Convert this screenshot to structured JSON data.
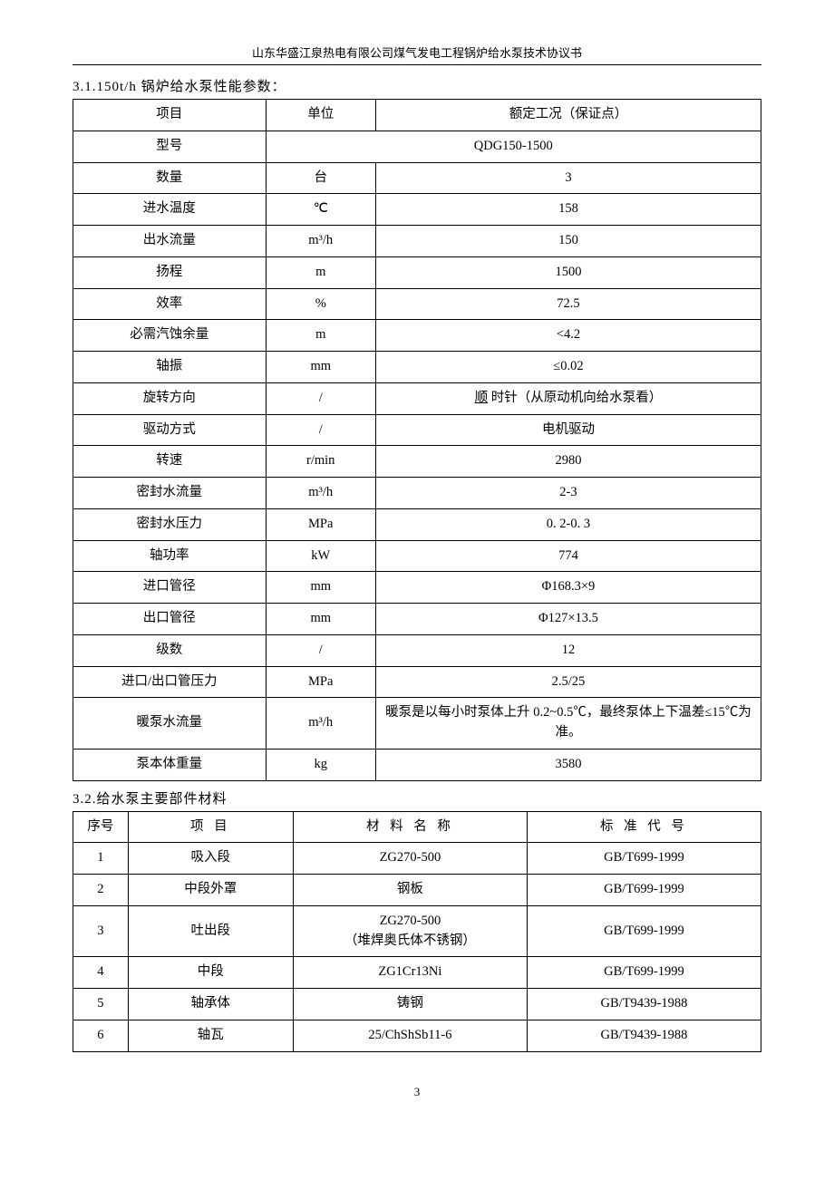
{
  "header": {
    "title": "山东华盛江泉热电有限公司煤气发电工程锅炉给水泵技术协议书"
  },
  "section31": {
    "title": "3.1.150t/h 锅炉给水泵性能参数：",
    "head": {
      "c1": "项目",
      "c2": "单位",
      "c3": "额定工况（保证点）"
    },
    "rows": [
      {
        "c1": "型号",
        "c2": "",
        "c3": "QDG150-1500",
        "merge23": true
      },
      {
        "c1": "数量",
        "c2": "台",
        "c3": "3"
      },
      {
        "c1": "进水温度",
        "c2": "℃",
        "c3": "158"
      },
      {
        "c1": "出水流量",
        "c2": "m³/h",
        "c3": "150"
      },
      {
        "c1": "扬程",
        "c2": "m",
        "c3": "1500"
      },
      {
        "c1": "效率",
        "c2": "%",
        "c3": "72.5"
      },
      {
        "c1": "必需汽蚀余量",
        "c2": "m",
        "c3": "<4.2"
      },
      {
        "c1": "轴振",
        "c2": "mm",
        "c3": "≤0.02"
      },
      {
        "c1": "旋转方向",
        "c2": "/",
        "c3_prefix": " ",
        "c3_u": "顺",
        "c3_suffix": " 时针（从原动机向给水泵看）",
        "underline": true
      },
      {
        "c1": "驱动方式",
        "c2": "/",
        "c3": "电机驱动"
      },
      {
        "c1": "转速",
        "c2": "r/min",
        "c3": "2980"
      },
      {
        "c1": "密封水流量",
        "c2": "m³/h",
        "c3": "2-3"
      },
      {
        "c1": "密封水压力",
        "c2": "MPa",
        "c3": "0. 2-0. 3"
      },
      {
        "c1": "轴功率",
        "c2": "kW",
        "c3": "774"
      },
      {
        "c1": "进口管径",
        "c2": "mm",
        "c3": "Φ168.3×9"
      },
      {
        "c1": "出口管径",
        "c2": "mm",
        "c3": "Φ127×13.5"
      },
      {
        "c1": "级数",
        "c2": "/",
        "c3": "12"
      },
      {
        "c1": "进口/出口管压力",
        "c2": "MPa",
        "c3": "2.5/25"
      },
      {
        "c1": "暖泵水流量",
        "c2": "m³/h",
        "c3": "暖泵是以每小时泵体上升 0.2~0.5℃，最终泵体上下温差≤15℃为准。"
      },
      {
        "c1": "泵本体重量",
        "c2": "kg",
        "c3": "3580"
      }
    ]
  },
  "section32": {
    "title": "3.2.给水泵主要部件材料",
    "head": {
      "c1": "序号",
      "c2": "项 目",
      "c3": "材 料 名 称",
      "c4": "标 准 代 号"
    },
    "rows": [
      {
        "c1": "1",
        "c2": "吸入段",
        "c3": "ZG270-500",
        "c4": "GB/T699-1999"
      },
      {
        "c1": "2",
        "c2": "中段外罩",
        "c3": "钢板",
        "c4": "GB/T699-1999"
      },
      {
        "c1": "3",
        "c2": "吐出段",
        "c3": "ZG270-500\n（堆焊奥氏体不锈钢）",
        "c4": "GB/T699-1999"
      },
      {
        "c1": "4",
        "c2": "中段",
        "c3": "ZG1Cr13Ni",
        "c4": "GB/T699-1999"
      },
      {
        "c1": "5",
        "c2": "轴承体",
        "c3": "铸钢",
        "c4": "GB/T9439-1988"
      },
      {
        "c1": "6",
        "c2": "轴瓦",
        "c3": "25/ChShSb11-6",
        "c4": "GB/T9439-1988"
      }
    ]
  },
  "page": {
    "num": "3"
  }
}
